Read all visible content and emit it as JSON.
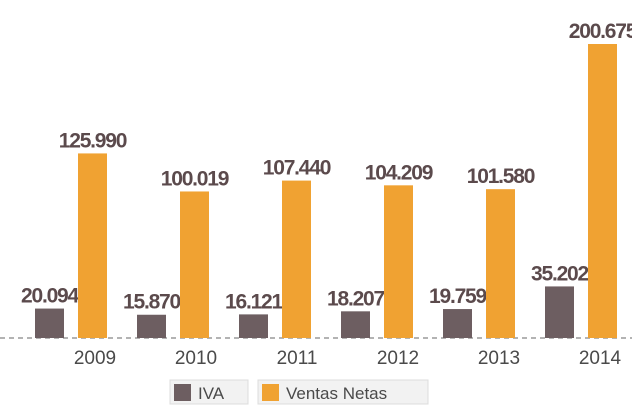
{
  "chart_data": {
    "type": "bar",
    "categories": [
      "2009",
      "2010",
      "2011",
      "2012",
      "2013",
      "2014"
    ],
    "series": [
      {
        "name": "IVA",
        "color": "#6d5e61",
        "values": [
          20.094,
          15.87,
          16.121,
          18.207,
          19.759,
          35.202
        ],
        "value_labels": [
          "20.094",
          "15.870",
          "16.121",
          "18.207",
          "19.759",
          "35.202"
        ]
      },
      {
        "name": "Ventas Netas",
        "color": "#f0a232",
        "values": [
          125.99,
          100.019,
          107.44,
          104.209,
          101.58,
          200.675
        ],
        "value_labels": [
          "125.990",
          "100.019",
          "107.440",
          "104.209",
          "101.580",
          "200.675"
        ]
      }
    ]
  }
}
